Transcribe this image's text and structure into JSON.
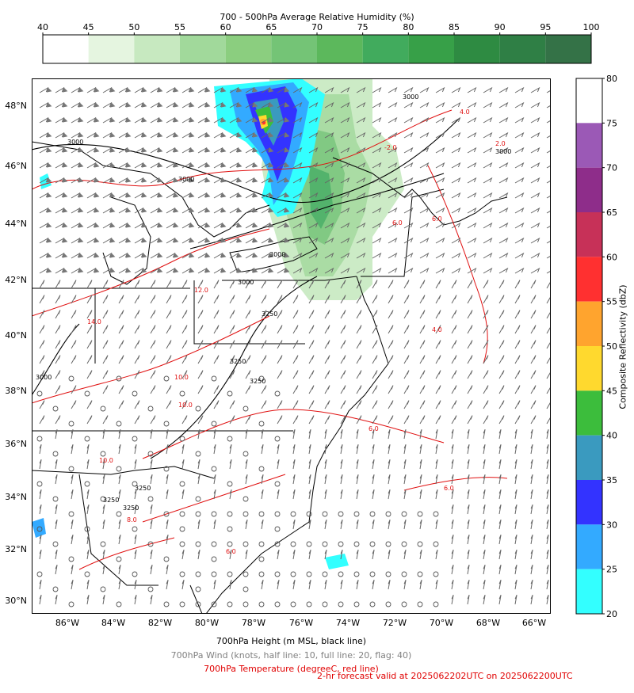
{
  "rh_colorbar": {
    "title": "700 - 500hPa Average Relative Humidity (%)",
    "ticks": [
      "40",
      "45",
      "50",
      "55",
      "60",
      "65",
      "70",
      "75",
      "80",
      "85",
      "90",
      "95",
      "100"
    ],
    "colors": [
      "#ffffff",
      "#e5f5e0",
      "#c7e9c0",
      "#a1d99b",
      "#8bce7f",
      "#74c476",
      "#5cb85c",
      "#41ab5d",
      "#37a048",
      "#2e8b42",
      "#2f7f45",
      "#347247"
    ]
  },
  "refl_colorbar": {
    "label": "Composite Reflectivity (dbZ)",
    "ticks": [
      "80",
      "75",
      "70",
      "65",
      "60",
      "55",
      "50",
      "45",
      "40",
      "35",
      "30",
      "25",
      "20"
    ],
    "colors": [
      "#ffffff",
      "#9b59b6",
      "#8e2d8a",
      "#c73158",
      "#ff3030",
      "#ffa42e",
      "#ffd92e",
      "#3cbd3c",
      "#3a9abf",
      "#3333ff",
      "#33aaff",
      "#33ffff"
    ]
  },
  "map": {
    "lon_labels": [
      "86°W",
      "84°W",
      "82°W",
      "80°W",
      "78°W",
      "76°W",
      "74°W",
      "72°W",
      "70°W",
      "68°W",
      "66°W"
    ],
    "lat_labels": [
      "48°N",
      "46°N",
      "44°N",
      "42°N",
      "40°N",
      "38°N",
      "36°N",
      "34°N",
      "32°N",
      "30°N"
    ],
    "height_contour_labels": [
      "3000",
      "3000",
      "3000",
      "3000",
      "3000",
      "3000",
      "3250",
      "3250",
      "3250",
      "3250",
      "3250",
      "3250",
      "3000"
    ],
    "temp_contour_labels": [
      "4.0",
      "2.0",
      "-2.0",
      "6.0",
      "6.0",
      "14.0",
      "12.0",
      "10.0",
      "10.0",
      "10.0",
      "8.0",
      "6.0",
      "6.0",
      "4.0",
      "6.0"
    ]
  },
  "footer": {
    "height_label": "700hPa Height (m MSL, black line)",
    "wind_label": "700hPa Wind (knots, half line: 10, full line: 20, flag: 40)",
    "temp_label": "700hPa Temperature (degreeC, red line)",
    "valid_label": "2-hr forecast valid at 2025062202UTC on 2025062200UTC"
  }
}
